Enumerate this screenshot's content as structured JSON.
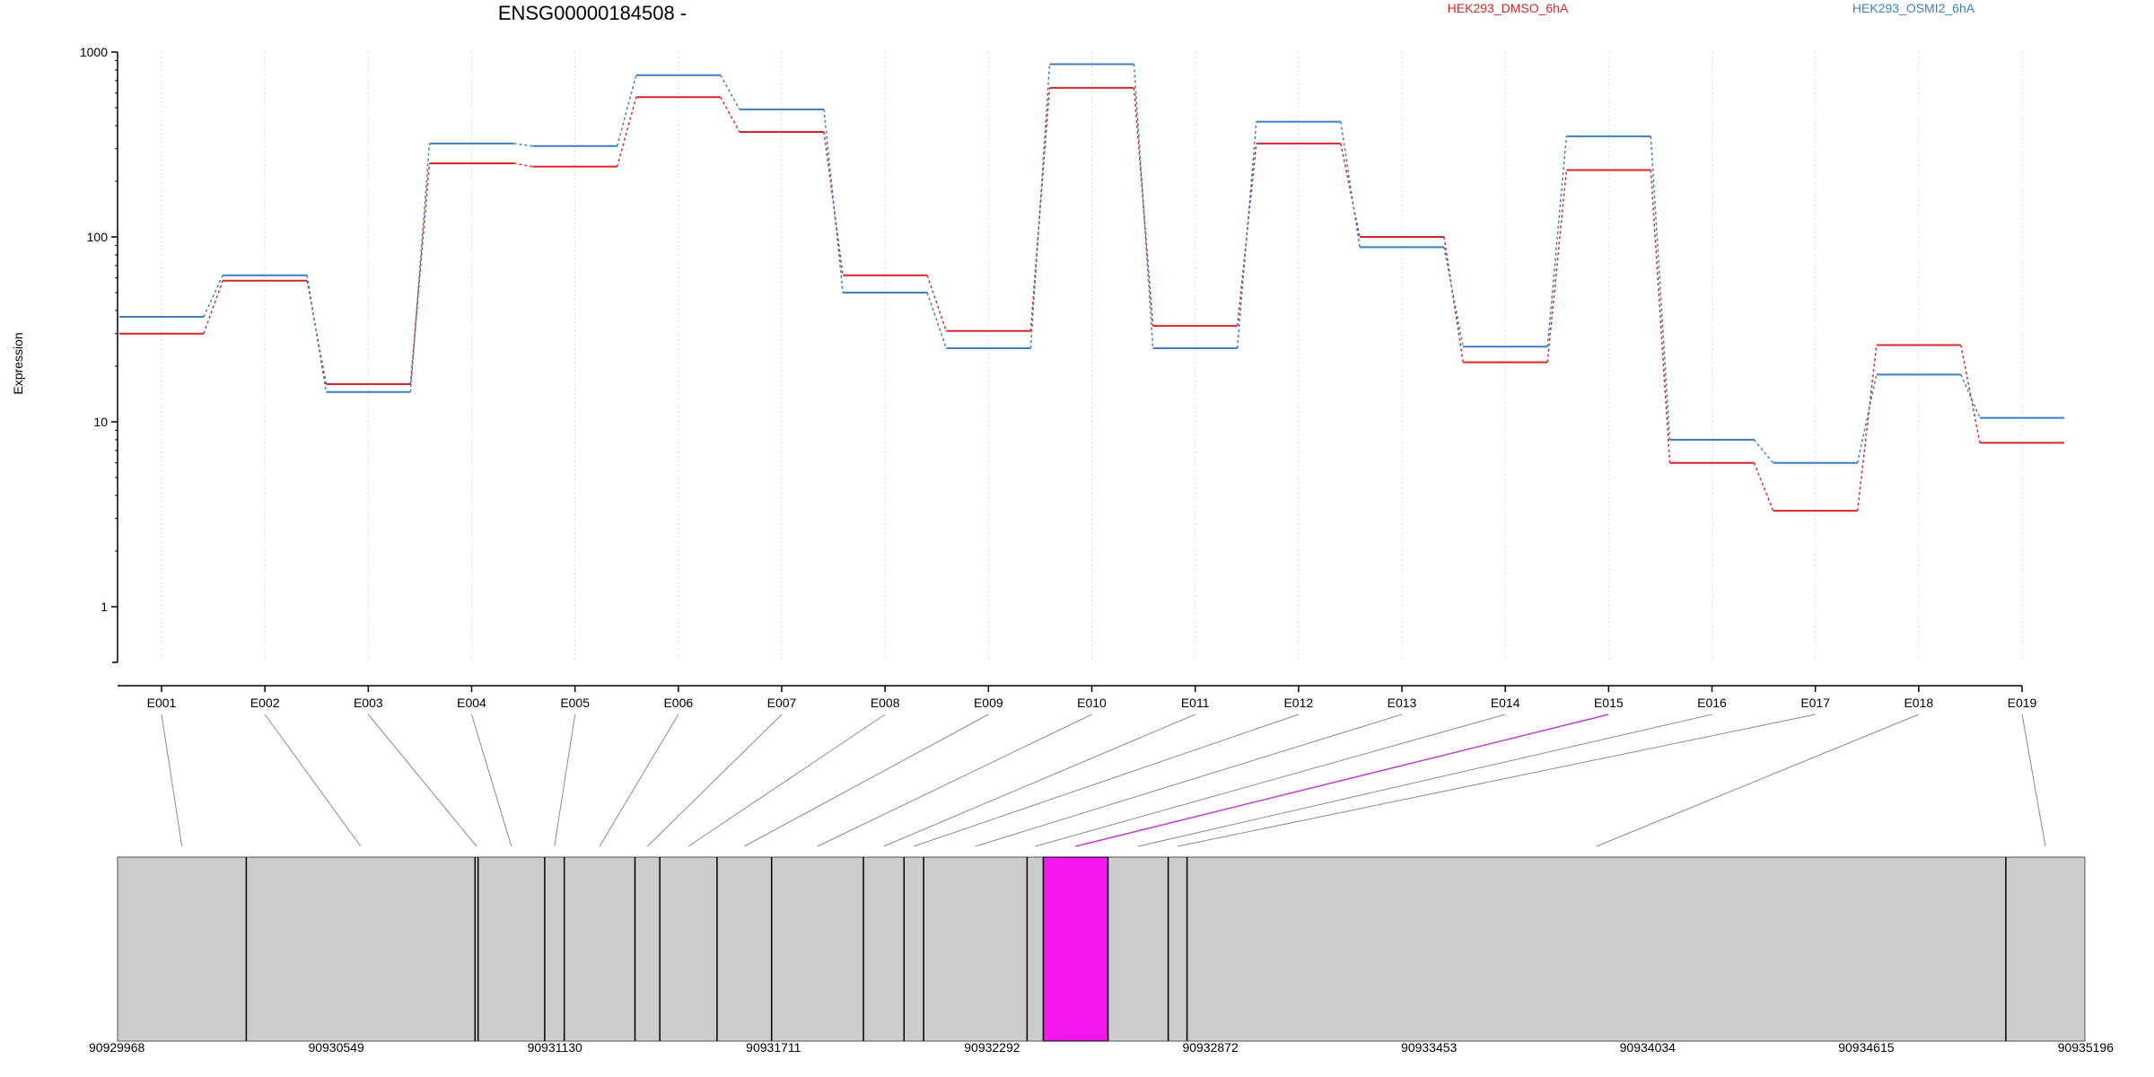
{
  "chart_data": {
    "type": "line",
    "title": "ENSG00000184508 -",
    "xlabel": "",
    "ylabel": "Expression",
    "yscale": "log",
    "ylim": [
      0.5,
      1000
    ],
    "y_ticks": [
      1,
      10,
      100,
      1000
    ],
    "y_tick_labels": [
      "1",
      "10",
      "100",
      "1000"
    ],
    "grid": "vertical dotted",
    "legend_position": "top-right",
    "categories": [
      "E001",
      "E002",
      "E003",
      "E004",
      "E005",
      "E006",
      "E007",
      "E008",
      "E009",
      "E010",
      "E011",
      "E012",
      "E013",
      "E014",
      "E015",
      "E016",
      "E017",
      "E018",
      "E019"
    ],
    "series": [
      {
        "name": "HEK293_DMSO_6hA",
        "color": "#d62728",
        "values": [
          30,
          58,
          16,
          250,
          240,
          570,
          370,
          62,
          31,
          640,
          33,
          320,
          100,
          21,
          230,
          6,
          3.3,
          26,
          7.7
        ]
      },
      {
        "name": "HEK293_OSMI2_6hA",
        "color": "#3c7fc1",
        "values": [
          37,
          62,
          14.5,
          320,
          310,
          750,
          490,
          50,
          25,
          860,
          25,
          420,
          88,
          25.5,
          350,
          8,
          6,
          18,
          10.5
        ]
      }
    ],
    "highlight_exon": "E015",
    "highlight_color": "#f218ee",
    "gene_model": {
      "coordinate_ticks": [
        "90929968",
        "90930549",
        "90931130",
        "90931711",
        "90932292",
        "90932872",
        "90933453",
        "90934034",
        "90934615",
        "90935196"
      ],
      "coordinate_start": 90929968,
      "coordinate_end": 90935196,
      "exon_boundaries": [
        90929968,
        90930310,
        90930918,
        90930926,
        90931103,
        90931155,
        90931343,
        90931409,
        90931561,
        90931706,
        90931950,
        90932058,
        90932110,
        90932385,
        90932428,
        90932600,
        90932760,
        90932810,
        90934986,
        90935196
      ],
      "box_color": "#cccccc"
    }
  }
}
